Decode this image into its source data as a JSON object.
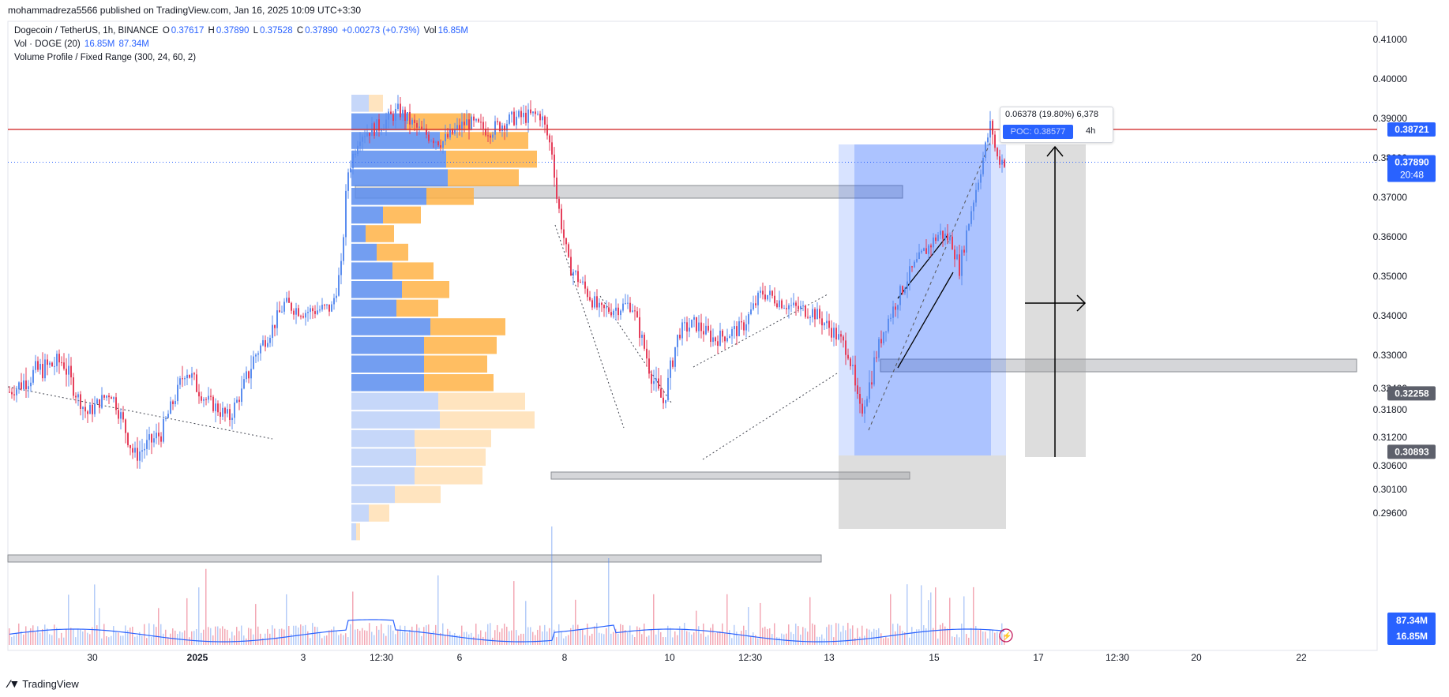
{
  "header": {
    "published": "mohammadreza5566 published on TradingView.com, Jan 16, 2025 10:09 UTC+3:30"
  },
  "legend": {
    "symbol": "Dogecoin / TetherUS, 1h, BINANCE",
    "o_label": "O",
    "o_value": "0.37617",
    "h_label": "H",
    "h_value": "0.37890",
    "l_label": "L",
    "l_value": "0.37528",
    "c_label": "C",
    "c_value": "0.37890",
    "change": "+0.00273 (+0.73%)",
    "vol_label": "Vol",
    "vol_value": "16.85M",
    "vol_indicator": "Vol · DOGE (20)",
    "vol_indicator_v1": "16.85M",
    "vol_indicator_v2": "87.34M",
    "vp_indicator": "Volume Profile / Fixed Range (300, 24, 60, 2)"
  },
  "measure_tooltip": {
    "line1": "0.06378 (19.80%) 6,378",
    "line2": "4h",
    "poc": "POC: 0.38577"
  },
  "footer": {
    "brand": "TradingView"
  },
  "colors": {
    "up": "#5b8def",
    "down": "#e53e5a",
    "profile_up": "#5b8def",
    "profile_down": "#ffb347",
    "price_line": "#d32f2f",
    "long_box": "#2962ff",
    "accent": "#2962ff"
  },
  "chart_data": {
    "type": "candlestick",
    "title": "Dogecoin / TetherUS, 1h, BINANCE",
    "xlabel": "",
    "ylabel": "",
    "x_ticks": [
      "30",
      "2025",
      "3",
      "12:30",
      "6",
      "8",
      "10",
      "12:30",
      "13",
      "15",
      "17",
      "12:30",
      "20",
      "22"
    ],
    "y_ticks": [
      "0.41000",
      "0.40000",
      "0.39000",
      "0.38000",
      "0.37000",
      "0.36000",
      "0.35000",
      "0.34000",
      "0.33000",
      "0.32400",
      "0.31800",
      "0.31200",
      "0.30600",
      "0.30100",
      "0.29600"
    ],
    "ylim": [
      0.2925,
      0.4135
    ],
    "price_labels": {
      "line_price": "0.38721",
      "current_price": "0.37890",
      "countdown": "20:48",
      "stop_price": "0.32258",
      "low_price": "0.30893",
      "vol_ma": "87.34M",
      "vol_last": "16.85M"
    },
    "horizontal_line": 0.38721,
    "current_price": 0.3789,
    "volume_profile": {
      "rows": [
        {
          "up": 22,
          "down": 18
        },
        {
          "up": 70,
          "down": 82
        },
        {
          "up": 112,
          "down": 112
        },
        {
          "up": 120,
          "down": 115
        },
        {
          "up": 122,
          "down": 90
        },
        {
          "up": 95,
          "down": 60
        },
        {
          "up": 40,
          "down": 48
        },
        {
          "up": 18,
          "down": 36
        },
        {
          "up": 32,
          "down": 40
        },
        {
          "up": 52,
          "down": 52
        },
        {
          "up": 64,
          "down": 60
        },
        {
          "up": 57,
          "down": 53
        },
        {
          "up": 100,
          "down": 95
        },
        {
          "up": 92,
          "down": 92
        },
        {
          "up": 92,
          "down": 80
        },
        {
          "up": 92,
          "down": 88
        },
        {
          "up": 110,
          "down": 110
        },
        {
          "up": 112,
          "down": 120
        },
        {
          "up": 80,
          "down": 97
        },
        {
          "up": 82,
          "down": 88
        },
        {
          "up": 80,
          "down": 86
        },
        {
          "up": 55,
          "down": 58
        },
        {
          "up": 22,
          "down": 26
        },
        {
          "up": 6,
          "down": 5
        }
      ]
    }
  }
}
